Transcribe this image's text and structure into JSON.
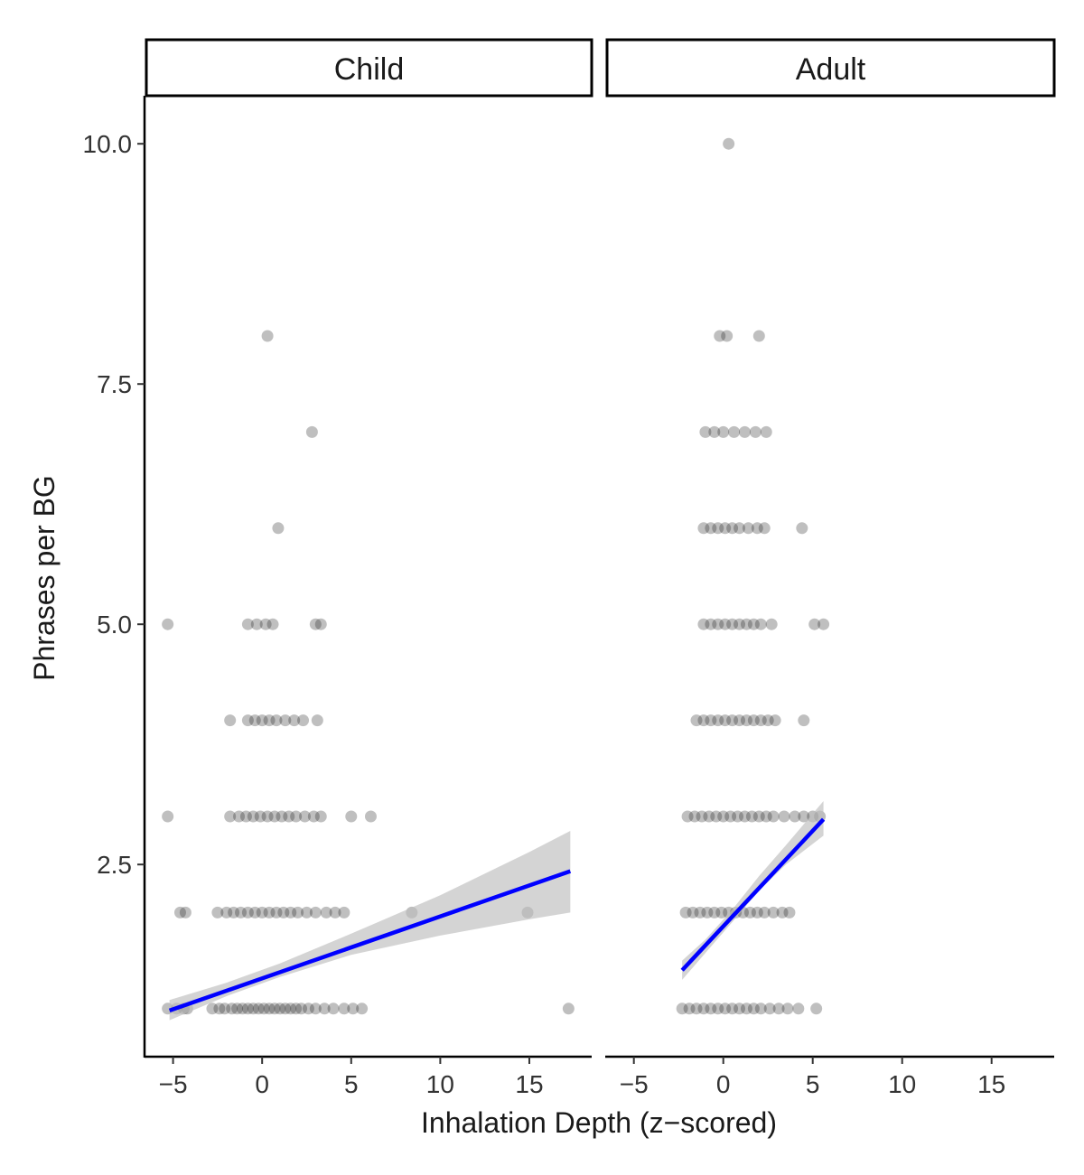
{
  "chart_data": {
    "type": "scatter",
    "title": "",
    "xlabel": "Inhalation Depth (z−scored)",
    "ylabel": "Phrases per BG",
    "xlim": [
      -6.5,
      18.5
    ],
    "ylim": [
      0.5,
      10.5
    ],
    "x_ticks": [
      -5,
      0,
      5,
      10,
      15
    ],
    "x_tick_labels": [
      "−5",
      "0",
      "5",
      "10",
      "15"
    ],
    "y_ticks": [
      2.5,
      5.0,
      7.5,
      10.0
    ],
    "y_tick_labels": [
      "2.5",
      "5.0",
      "7.5",
      "10.0"
    ],
    "grid": false,
    "legend": "none",
    "colors": {
      "point": "#000000",
      "fit_line": "#0000ff",
      "ribbon": "#bdbdbd"
    },
    "panels": [
      {
        "name": "Child",
        "series": [
          {
            "y": 1,
            "x": [
              -5.3,
              -4.8,
              -4.4,
              -4.2,
              -2.8,
              -2.4,
              -2.1,
              -1.7,
              -1.4,
              -1.1,
              -0.8,
              -0.5,
              -0.2,
              0.1,
              0.4,
              0.7,
              1.0,
              1.3,
              1.6,
              1.9,
              2.2,
              2.6,
              3.0,
              3.5,
              4.0,
              4.6,
              5.1,
              5.6,
              17.2
            ]
          },
          {
            "y": 2,
            "x": [
              -4.6,
              -4.3,
              -2.5,
              -2.0,
              -1.6,
              -1.2,
              -0.8,
              -0.4,
              0.0,
              0.4,
              0.8,
              1.2,
              1.6,
              2.0,
              2.5,
              3.0,
              3.6,
              4.1,
              4.6,
              8.4,
              14.9
            ]
          },
          {
            "y": 3,
            "x": [
              -5.3,
              -1.8,
              -1.3,
              -0.9,
              -0.5,
              -0.1,
              0.3,
              0.7,
              1.1,
              1.5,
              1.9,
              2.4,
              2.9,
              3.3,
              5.0,
              6.1
            ]
          },
          {
            "y": 4,
            "x": [
              -1.8,
              -0.8,
              -0.4,
              0.0,
              0.4,
              0.8,
              1.3,
              1.8,
              2.3,
              3.1
            ]
          },
          {
            "y": 5,
            "x": [
              -5.3,
              -0.8,
              -0.3,
              0.2,
              0.6,
              3.0,
              3.3
            ]
          },
          {
            "y": 6,
            "x": [
              0.9
            ]
          },
          {
            "y": 7,
            "x": [
              2.8
            ]
          },
          {
            "y": 8,
            "x": [
              0.3
            ]
          }
        ],
        "fit": {
          "x": [
            -5.2,
            17.3
          ],
          "y": [
            0.98,
            2.43
          ]
        },
        "ribbon": {
          "x": [
            -5.2,
            -2.0,
            1.0,
            5.0,
            10.0,
            15.0,
            17.3
          ],
          "lower": [
            0.88,
            1.13,
            1.33,
            1.56,
            1.76,
            1.93,
            2.0
          ],
          "upper": [
            1.09,
            1.27,
            1.47,
            1.78,
            2.18,
            2.63,
            2.85
          ]
        }
      },
      {
        "name": "Adult",
        "series": [
          {
            "y": 1,
            "x": [
              -2.3,
              -1.9,
              -1.5,
              -1.1,
              -0.7,
              -0.3,
              0.1,
              0.5,
              0.9,
              1.3,
              1.7,
              2.1,
              2.6,
              3.1,
              3.6,
              4.2,
              5.2
            ]
          },
          {
            "y": 2,
            "x": [
              -2.1,
              -1.7,
              -1.3,
              -0.9,
              -0.5,
              -0.1,
              0.3,
              0.7,
              1.1,
              1.5,
              1.9,
              2.3,
              2.8,
              3.3,
              3.7
            ]
          },
          {
            "y": 3,
            "x": [
              -2.0,
              -1.6,
              -1.2,
              -0.8,
              -0.4,
              0.0,
              0.4,
              0.8,
              1.2,
              1.6,
              2.0,
              2.4,
              2.8,
              3.4,
              4.0,
              4.5,
              5.0,
              5.4
            ]
          },
          {
            "y": 4,
            "x": [
              -1.5,
              -1.1,
              -0.7,
              -0.3,
              0.1,
              0.5,
              0.9,
              1.3,
              1.7,
              2.1,
              2.5,
              2.9,
              4.5
            ]
          },
          {
            "y": 5,
            "x": [
              -1.1,
              -0.7,
              -0.3,
              0.1,
              0.5,
              0.9,
              1.3,
              1.7,
              2.1,
              2.7,
              5.1,
              5.6
            ]
          },
          {
            "y": 6,
            "x": [
              -1.1,
              -0.7,
              -0.3,
              0.1,
              0.5,
              0.9,
              1.4,
              1.9,
              2.3,
              4.4
            ]
          },
          {
            "y": 7,
            "x": [
              -1.0,
              -0.5,
              0.0,
              0.6,
              1.2,
              1.8,
              2.4
            ]
          },
          {
            "y": 8,
            "x": [
              -0.2,
              0.2,
              2.0
            ]
          },
          {
            "y": 10,
            "x": [
              0.3
            ]
          }
        ],
        "fit": {
          "x": [
            -2.3,
            5.6
          ],
          "y": [
            1.4,
            2.97
          ]
        },
        "ribbon": {
          "x": [
            -2.3,
            -1.0,
            0.5,
            2.0,
            3.5,
            5.6
          ],
          "lower": [
            1.3,
            1.58,
            1.9,
            2.23,
            2.5,
            2.8
          ],
          "upper": [
            1.5,
            1.72,
            2.03,
            2.38,
            2.7,
            3.16
          ]
        }
      }
    ]
  }
}
